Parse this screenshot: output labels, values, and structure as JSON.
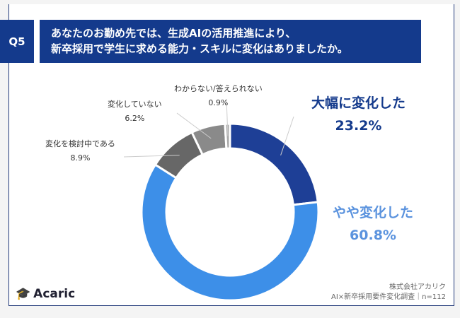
{
  "header": {
    "q_label": "Q5",
    "title_line1": "あなたのお勤め先では、生成AIの活用推進により、",
    "title_line2": "新卒採用で学生に求める能力・スキルに変化はありましたか。"
  },
  "chart_data": {
    "type": "pie",
    "donut": true,
    "categories": [
      "大幅に変化した",
      "やや変化した",
      "変化を検討中である",
      "変化していない",
      "わからない/答えられない"
    ],
    "values": [
      23.2,
      60.8,
      8.9,
      6.2,
      0.9
    ],
    "value_labels": [
      "23.2%",
      "60.8%",
      "8.9%",
      "6.2%",
      "0.9%"
    ],
    "colors": [
      "#1e3f96",
      "#3d8fe8",
      "#676767",
      "#8a8a8a",
      "#a9a9a9"
    ],
    "title": ""
  },
  "footer": {
    "logo_text": "Acaric",
    "logo_kana": "アカリク",
    "company": "株式会社アカリク",
    "survey": "AI×新卒採用要件変化調査｜n=112"
  }
}
